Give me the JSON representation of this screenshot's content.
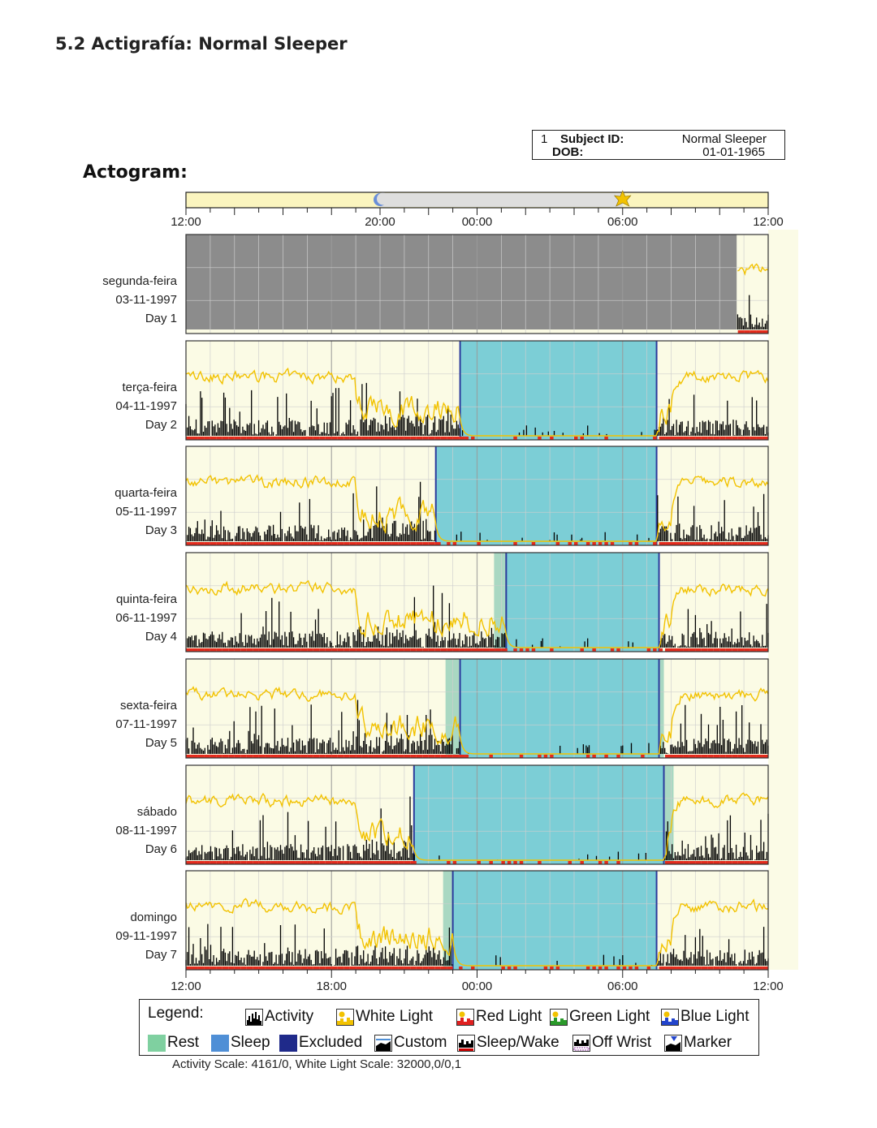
{
  "section_title": "5.2 Actigrafía: Normal Sleeper",
  "actogram_title": "Actogram:",
  "subject": {
    "number": "1",
    "id_label": "Subject ID:",
    "id_value": "Normal Sleeper",
    "dob_label": "DOB:",
    "dob_value": "01-01-1965"
  },
  "legend": {
    "title": "Legend:",
    "items": [
      {
        "label": "Activity",
        "color": "#000000"
      },
      {
        "label": "White Light",
        "color": "#f2c200"
      },
      {
        "label": "Red Light",
        "color": "#e02020"
      },
      {
        "label": "Green Light",
        "color": "#2a9a2a"
      },
      {
        "label": "Blue Light",
        "color": "#2244cc"
      },
      {
        "label": "Rest",
        "color": "#7fd0a0"
      },
      {
        "label": "Sleep",
        "color": "#4f8fd6"
      },
      {
        "label": "Excluded",
        "color": "#1f2a8a"
      },
      {
        "label": "Custom",
        "color": "#ffffff"
      },
      {
        "label": "Sleep/Wake",
        "color": "#cc0000"
      },
      {
        "label": "Off Wrist",
        "color": "#ffffff"
      },
      {
        "label": "Marker",
        "color": "#2244cc"
      }
    ]
  },
  "scale_note": "Activity Scale: 4161/0, White Light Scale: 32000,0/0,1",
  "chart_data": {
    "type": "actogram",
    "x_unit": "hours after 12:00",
    "xlim": [
      0,
      24
    ],
    "top_ticks": [
      "12:00",
      "20:00",
      "00:00",
      "06:00",
      "12:00"
    ],
    "top_tick_hours": [
      0,
      8,
      12,
      18,
      24
    ],
    "bottom_ticks": [
      "12:00",
      "18:00",
      "00:00",
      "06:00",
      "12:00"
    ],
    "bottom_tick_hours": [
      0,
      6,
      12,
      18,
      24
    ],
    "dark_period": {
      "start": 8,
      "end": 18
    },
    "colors": {
      "plot_bg": "#fbfbe5",
      "grid": "#cfcfcf",
      "sleep": "#7cced6",
      "rest": "#a9d8c2",
      "excluded": "#8c8c8c",
      "activity": "#000000",
      "light": "#f2c200",
      "wake_bar": "#e32a1c",
      "boundary": "#2b3a9c",
      "night_bar": "#dedede",
      "day_bar": "#fbf5bf"
    },
    "days": [
      {
        "weekday": "segunda-feira",
        "date": "03-11-1997",
        "label": "Day 1",
        "excluded_until": 22.7
      },
      {
        "weekday": "terça-feira",
        "date": "04-11-1997",
        "label": "Day 2",
        "sleep": [
          11.3,
          19.4
        ],
        "rest": null
      },
      {
        "weekday": "quarta-feira",
        "date": "05-11-1997",
        "label": "Day 3",
        "sleep": [
          10.3,
          19.4
        ],
        "rest": null
      },
      {
        "weekday": "quinta-feira",
        "date": "06-11-1997",
        "label": "Day 4",
        "sleep": [
          13.2,
          19.5
        ],
        "rest": [
          12.7,
          19.5
        ]
      },
      {
        "weekday": "sexta-feira",
        "date": "07-11-1997",
        "label": "Day 5",
        "sleep": [
          11.3,
          19.5
        ],
        "rest": [
          10.7,
          19.7
        ]
      },
      {
        "weekday": "sábado",
        "date": "08-11-1997",
        "label": "Day 6",
        "sleep": [
          9.4,
          19.7
        ],
        "rest": [
          9.4,
          20.1
        ]
      },
      {
        "weekday": "domingo",
        "date": "09-11-1997",
        "label": "Day 7",
        "sleep": [
          11.0,
          19.4
        ],
        "rest": [
          10.6,
          19.4
        ]
      }
    ]
  }
}
